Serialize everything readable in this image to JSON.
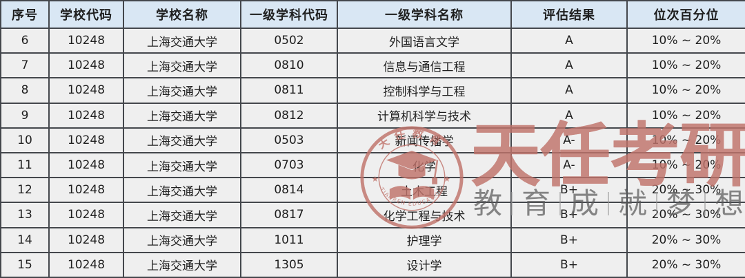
{
  "table": {
    "columns": [
      "序号",
      "学校代码",
      "学校名称",
      "一级学科代码",
      "一级学科名称",
      "评估结果",
      "位次百分位"
    ],
    "rows": [
      [
        "6",
        "10248",
        "上海交通大学",
        "0502",
        "外国语言文学",
        "A",
        "10% ~ 20%"
      ],
      [
        "7",
        "10248",
        "上海交通大学",
        "0810",
        "信息与通信工程",
        "A",
        "10% ~ 20%"
      ],
      [
        "8",
        "10248",
        "上海交通大学",
        "0811",
        "控制科学与工程",
        "A",
        "10% ~ 20%"
      ],
      [
        "9",
        "10248",
        "上海交通大学",
        "0812",
        "计算机科学与技术",
        "A",
        "10% ~ 20%"
      ],
      [
        "10",
        "10248",
        "上海交通大学",
        "0503",
        "新闻传播学",
        "A-",
        "10% ~ 20%"
      ],
      [
        "11",
        "10248",
        "上海交通大学",
        "0703",
        "化学",
        "A-",
        "10% ~ 20%"
      ],
      [
        "12",
        "10248",
        "上海交通大学",
        "0814",
        "土木工程",
        "B+",
        "20% ~ 30%"
      ],
      [
        "13",
        "10248",
        "上海交通大学",
        "0817",
        "化学工程与技术",
        "B+",
        "20% ~ 30%"
      ],
      [
        "14",
        "10248",
        "上海交通大学",
        "1011",
        "护理学",
        "B+",
        "20% ~ 30%"
      ],
      [
        "15",
        "10248",
        "上海交通大学",
        "1305",
        "设计学",
        "B+",
        "20% ~ 30%"
      ]
    ]
  },
  "watermark": {
    "brand_text": "天任考研",
    "slogan_chars": [
      "教",
      "育",
      "成",
      "就",
      "梦",
      "想"
    ],
    "seal": {
      "top_text": "天任教育",
      "bottom_text": "TIANREN EDUCATION",
      "star": "★"
    },
    "colors": {
      "brand_red": "#c0736b",
      "slogan_gray": "#5a5a5a"
    }
  },
  "colors": {
    "header_bg": "#d9e7f4",
    "cell_bg": "#efefef",
    "grid": "#44474c",
    "text": "#1e1e1e"
  }
}
